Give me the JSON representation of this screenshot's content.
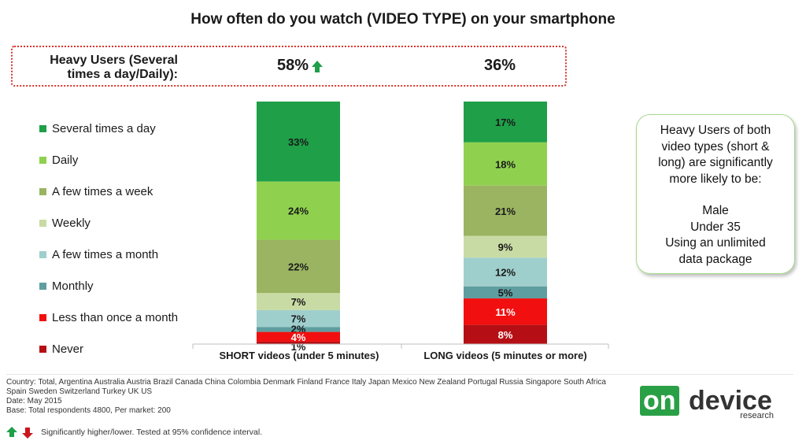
{
  "title": "How often do you watch (VIDEO TYPE) on your smartphone",
  "heavy_users": {
    "label_line1": "Heavy Users (Several",
    "label_line2": "times a day/Daily):",
    "short_value": "58%",
    "long_value": "36%",
    "short_indicator": "up-arrow-green"
  },
  "chart_data": {
    "type": "bar",
    "stacked": true,
    "categories": [
      "SHORT videos (under 5 minutes)",
      "LONG videos (5 minutes or more)"
    ],
    "series": [
      {
        "name": "Several times a day",
        "color": "#1e9f48",
        "values": [
          33,
          17
        ]
      },
      {
        "name": "Daily",
        "color": "#8fd14f",
        "values": [
          24,
          18
        ]
      },
      {
        "name": "A few times a week",
        "color": "#9bb462",
        "values": [
          22,
          21
        ]
      },
      {
        "name": "Weekly",
        "color": "#c9dba4",
        "values": [
          7,
          9
        ]
      },
      {
        "name": "A few times a month",
        "color": "#9fcfcc",
        "values": [
          7,
          12
        ]
      },
      {
        "name": "Monthly",
        "color": "#5f9ea0",
        "values": [
          2,
          5
        ]
      },
      {
        "name": "Less than once a month",
        "color": "#f20f0f",
        "values": [
          4,
          11
        ]
      },
      {
        "name": "Never",
        "color": "#b50f15",
        "values": [
          1,
          8
        ]
      }
    ],
    "data_labels": [
      [
        "33%",
        "24%",
        "22%",
        "7%",
        "7%",
        "2%",
        "4%",
        "1%"
      ],
      [
        "17%",
        "18%",
        "21%",
        "9%",
        "12%",
        "5%",
        "11%",
        "8%"
      ]
    ],
    "legend_position": "left",
    "grid": false
  },
  "note_box": {
    "lines": [
      "Heavy Users of both",
      "video types (short &",
      "long) are significantly",
      "more likely to be:"
    ],
    "traits": [
      "Male",
      "Under 35",
      "Using an unlimited",
      "data package"
    ]
  },
  "footer": {
    "countries_line1": "Country: Total, Argentina Australia Austria Brazil Canada China Colombia Denmark Finland France Italy Japan Mexico New Zealand Portugal Russia Singapore South Africa",
    "countries_line2": "Spain Sweden Switzerland Turkey UK US",
    "date": "Date: May 2015",
    "base": "Base: Total respondents 4800, Per market: 200",
    "significance": "Significantly higher/lower. Tested at 95% confidence interval."
  },
  "logo": {
    "on": "on",
    "device": "device",
    "research": "research"
  }
}
